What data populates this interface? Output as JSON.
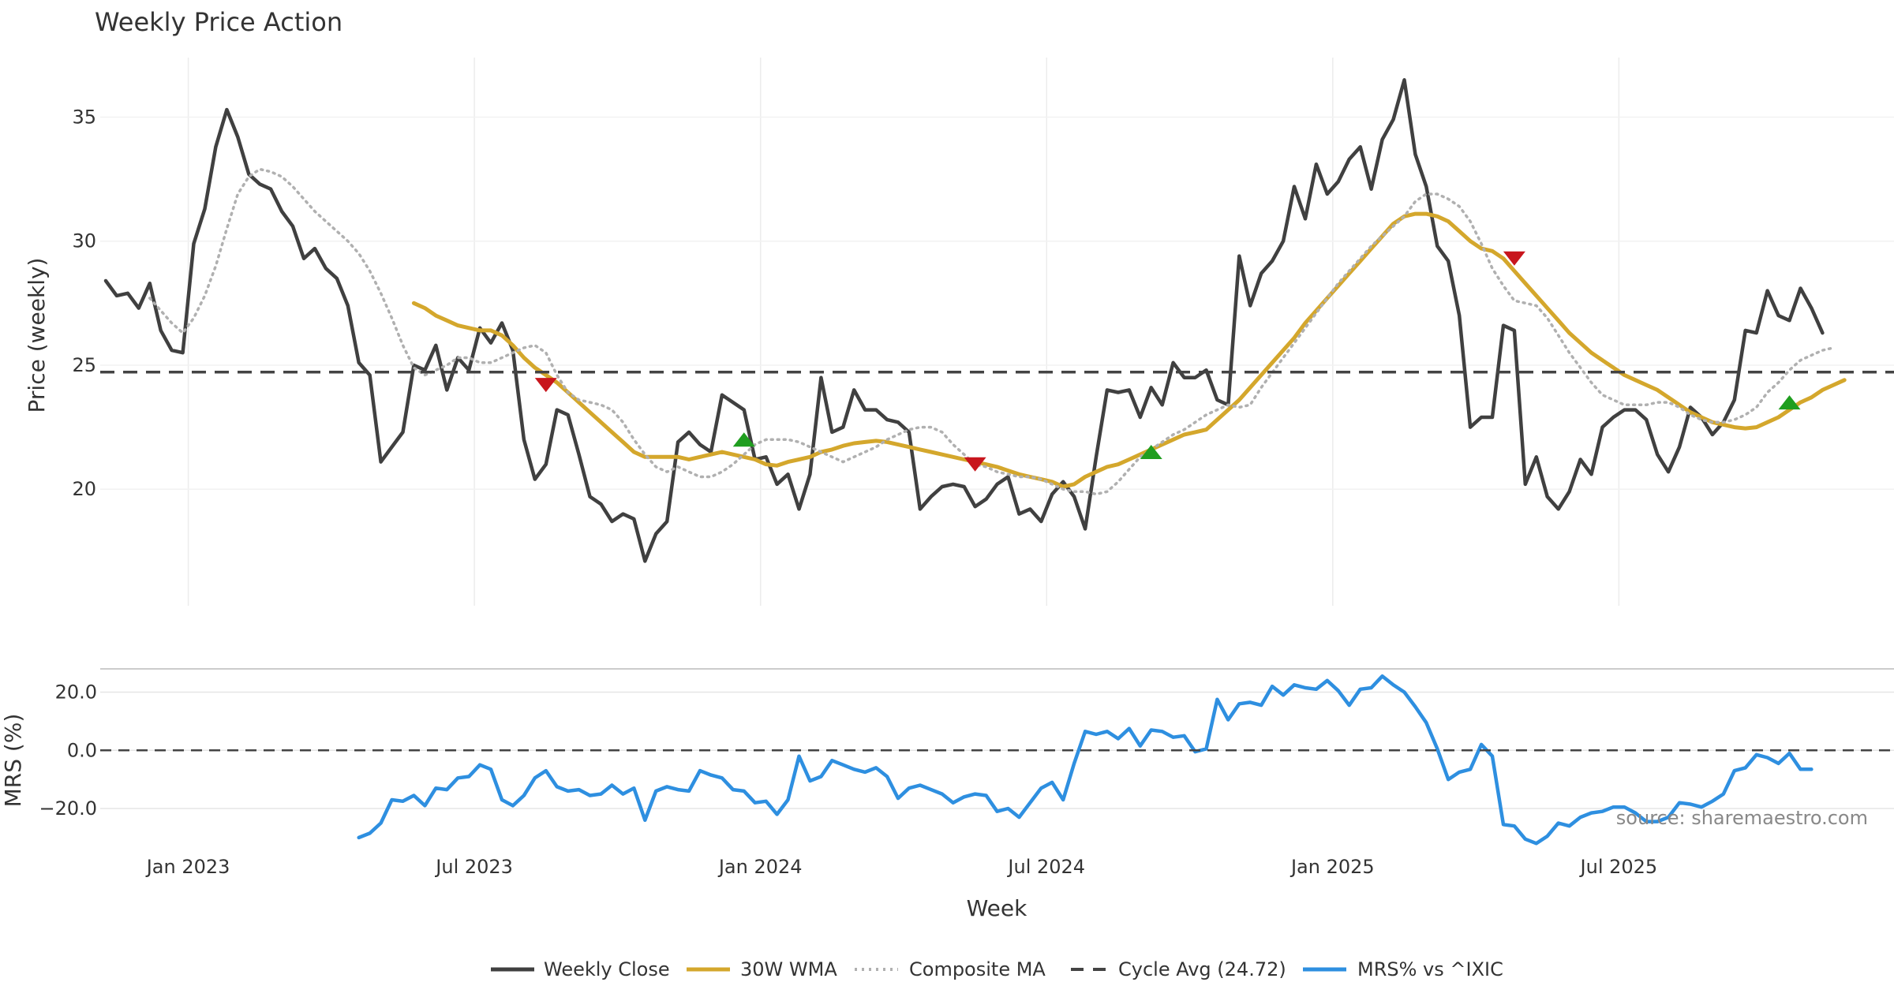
{
  "chart_data": {
    "title": "Weekly Price Action",
    "source_note": "source: sharemaestro.com",
    "xlabel": "Week",
    "x_tick_labels": [
      "Jan 2023",
      "Jul 2023",
      "Jan 2024",
      "Jul 2024",
      "Jan 2025",
      "Jul 2025"
    ],
    "x_range_weeks": [
      -0.5,
      162.5
    ],
    "legend_placement": "bottom-center",
    "legend": [
      {
        "label": "Weekly Close",
        "color": "#404040",
        "style": "solid"
      },
      {
        "label": "30W WMA",
        "color": "#d4a72c",
        "style": "solid"
      },
      {
        "label": "Composite MA",
        "color": "#b0b0b0",
        "style": "dotted"
      },
      {
        "label": "Cycle Avg (24.72)",
        "color": "#444444",
        "style": "dashed"
      },
      {
        "label": "MRS% vs ^IXIC",
        "color": "#2e8fe0",
        "style": "solid"
      }
    ],
    "panels": [
      {
        "type": "line",
        "ylabel": "Price (weekly)",
        "ylim": [
          15.3,
          37.4
        ],
        "yticks": [
          20,
          25,
          30,
          35
        ],
        "grid": true,
        "series": [
          {
            "name": "Weekly Close",
            "color": "#404040",
            "width": 4.5,
            "dash": "",
            "start_week": 0,
            "values": [
              28.4,
              27.8,
              27.9,
              27.3,
              28.3,
              26.4,
              25.6,
              25.5,
              29.9,
              31.3,
              33.8,
              35.3,
              34.2,
              32.7,
              32.3,
              32.1,
              31.2,
              30.6,
              29.3,
              29.7,
              28.9,
              28.5,
              27.4,
              25.1,
              24.6,
              21.1,
              21.7,
              22.3,
              25.0,
              24.8,
              25.8,
              24.0,
              25.3,
              24.8,
              26.5,
              25.9,
              26.7,
              25.6,
              22.0,
              20.4,
              21.0,
              23.2,
              23.0,
              21.4,
              19.7,
              19.4,
              18.7,
              19.0,
              18.8,
              17.1,
              18.2,
              18.7,
              21.9,
              22.3,
              21.8,
              21.5,
              23.8,
              23.5,
              23.2,
              21.2,
              21.3,
              20.2,
              20.6,
              19.2,
              20.6,
              24.5,
              22.3,
              22.5,
              24.0,
              23.2,
              23.2,
              22.8,
              22.7,
              22.3,
              19.2,
              19.7,
              20.1,
              20.2,
              20.1,
              19.3,
              19.6,
              20.2,
              20.5,
              19.0,
              19.2,
              18.7,
              19.8,
              20.3,
              19.7,
              18.4,
              21.3,
              24.0,
              23.9,
              24.0,
              22.9,
              24.1,
              23.4,
              25.1,
              24.5,
              24.5,
              24.8,
              23.6,
              23.4,
              29.4,
              27.4,
              28.7,
              29.2,
              30.0,
              32.2,
              30.9,
              33.1,
              31.9,
              32.4,
              33.3,
              33.8,
              32.1,
              34.1,
              34.9,
              36.5,
              33.5,
              32.2,
              29.8,
              29.2,
              27.0,
              22.5,
              22.9,
              22.9,
              26.6,
              26.4,
              20.2,
              21.3,
              19.7,
              19.2,
              19.9,
              21.2,
              20.6,
              22.5,
              22.9,
              23.2,
              23.2,
              22.8,
              21.4,
              20.7,
              21.7,
              23.3,
              22.9,
              22.2,
              22.7,
              23.6,
              26.4,
              26.3,
              28.0,
              27.0,
              26.8,
              28.1,
              27.3,
              26.3
            ]
          },
          {
            "name": "30W WMA",
            "color": "#d4a72c",
            "width": 5,
            "dash": "",
            "start_week": 28,
            "values": [
              27.5,
              27.3,
              27.0,
              26.8,
              26.6,
              26.5,
              26.4,
              26.4,
              26.2,
              25.8,
              25.3,
              24.9,
              24.6,
              24.3,
              23.9,
              23.5,
              23.1,
              22.7,
              22.3,
              21.9,
              21.5,
              21.3,
              21.3,
              21.3,
              21.3,
              21.2,
              21.3,
              21.4,
              21.5,
              21.4,
              21.3,
              21.2,
              21.0,
              20.95,
              21.1,
              21.2,
              21.3,
              21.5,
              21.6,
              21.75,
              21.85,
              21.9,
              21.95,
              21.9,
              21.8,
              21.7,
              21.6,
              21.5,
              21.4,
              21.3,
              21.2,
              21.1,
              21.0,
              20.9,
              20.75,
              20.6,
              20.5,
              20.4,
              20.3,
              20.1,
              20.2,
              20.5,
              20.7,
              20.9,
              21.0,
              21.2,
              21.4,
              21.6,
              21.8,
              22.0,
              22.2,
              22.3,
              22.4,
              22.8,
              23.2,
              23.6,
              24.1,
              24.6,
              25.1,
              25.6,
              26.1,
              26.7,
              27.2,
              27.7,
              28.2,
              28.7,
              29.2,
              29.7,
              30.2,
              30.7,
              31.0,
              31.1,
              31.1,
              31.0,
              30.8,
              30.4,
              30.0,
              29.7,
              29.6,
              29.3,
              28.8,
              28.3,
              27.8,
              27.3,
              26.8,
              26.3,
              25.9,
              25.5,
              25.2,
              24.9,
              24.6,
              24.4,
              24.2,
              24.0,
              23.7,
              23.4,
              23.1,
              22.9,
              22.7,
              22.6,
              22.5,
              22.45,
              22.5,
              22.7,
              22.9,
              23.2,
              23.5,
              23.7,
              24.0,
              24.2,
              24.4
            ]
          },
          {
            "name": "Composite MA",
            "color": "#b0b0b0",
            "width": 3.5,
            "dash": "2 6",
            "start_week": 4,
            "values": [
              27.7,
              27.2,
              26.7,
              26.3,
              26.9,
              27.8,
              29.0,
              30.5,
              31.9,
              32.6,
              32.9,
              32.8,
              32.6,
              32.2,
              31.7,
              31.2,
              30.8,
              30.4,
              30.0,
              29.5,
              28.8,
              27.9,
              26.9,
              25.8,
              24.9,
              24.6,
              24.8,
              25.0,
              25.3,
              25.3,
              25.1,
              25.1,
              25.3,
              25.5,
              25.7,
              25.8,
              25.5,
              24.6,
              23.9,
              23.6,
              23.5,
              23.4,
              23.2,
              22.7,
              22.0,
              21.4,
              20.9,
              20.7,
              20.9,
              20.7,
              20.5,
              20.5,
              20.7,
              21.0,
              21.4,
              21.8,
              22.0,
              22.0,
              22.0,
              21.9,
              21.7,
              21.5,
              21.3,
              21.1,
              21.3,
              21.5,
              21.7,
              22.0,
              22.2,
              22.4,
              22.5,
              22.5,
              22.3,
              21.8,
              21.4,
              21.0,
              20.9,
              20.7,
              20.6,
              20.5,
              20.5,
              20.4,
              20.2,
              20.0,
              19.9,
              19.9,
              19.8,
              19.9,
              20.3,
              20.8,
              21.3,
              21.6,
              21.9,
              22.2,
              22.4,
              22.7,
              23.0,
              23.2,
              23.4,
              23.3,
              23.4,
              24.1,
              24.7,
              25.3,
              25.9,
              26.5,
              27.1,
              27.7,
              28.3,
              28.8,
              29.3,
              29.8,
              30.2,
              30.6,
              31.0,
              31.6,
              31.9,
              31.9,
              31.7,
              31.4,
              30.8,
              29.9,
              28.9,
              28.2,
              27.6,
              27.5,
              27.4,
              26.9,
              26.2,
              25.5,
              24.9,
              24.3,
              23.8,
              23.6,
              23.4,
              23.4,
              23.4,
              23.5,
              23.5,
              23.3,
              23.0,
              22.8,
              22.7,
              22.7,
              22.8,
              23.0,
              23.3,
              23.9,
              24.3,
              24.8,
              25.2,
              25.4,
              25.6,
              25.7
            ]
          },
          {
            "name": "Cycle Avg (24.72)",
            "color": "#444444",
            "width": 3.5,
            "dash": "18 11",
            "constant": 24.72
          }
        ],
        "markers": [
          {
            "shape": "triangle-down",
            "color": "#c8161d",
            "week": 40,
            "value": 24.2
          },
          {
            "shape": "triangle-up",
            "color": "#1f9e1f",
            "week": 58,
            "value": 22.0
          },
          {
            "shape": "triangle-down",
            "color": "#c8161d",
            "week": 79,
            "value": 21.0
          },
          {
            "shape": "triangle-up",
            "color": "#1f9e1f",
            "week": 95,
            "value": 21.5
          },
          {
            "shape": "triangle-down",
            "color": "#c8161d",
            "week": 128,
            "value": 29.3
          },
          {
            "shape": "triangle-up",
            "color": "#1f9e1f",
            "week": 153,
            "value": 23.5
          }
        ]
      },
      {
        "type": "line",
        "ylabel": "MRS (%)",
        "ylim": [
          -33,
          28
        ],
        "yticks": [
          20.0,
          0.0,
          -20.0
        ],
        "ytick_labels": [
          "20.0",
          "0.0",
          "−20.0"
        ],
        "grid": true,
        "series": [
          {
            "name": "MRS% vs ^IXIC",
            "color": "#2e8fe0",
            "width": 4.5,
            "dash": "",
            "start_week": 23,
            "values": [
              -30.0,
              -28.5,
              -25.0,
              -17.0,
              -17.5,
              -15.5,
              -19.0,
              -13.0,
              -13.5,
              -9.5,
              -9.0,
              -5.0,
              -6.5,
              -17.0,
              -19.0,
              -15.5,
              -9.5,
              -7.0,
              -12.5,
              -14.0,
              -13.5,
              -15.5,
              -15.0,
              -12.0,
              -15.0,
              -13.0,
              -24.0,
              -14.0,
              -12.5,
              -13.5,
              -14.0,
              -7.0,
              -8.5,
              -9.5,
              -13.5,
              -14.0,
              -18.0,
              -17.5,
              -22.0,
              -17.0,
              -2.0,
              -10.5,
              -9.0,
              -3.5,
              -5.0,
              -6.5,
              -7.5,
              -6.0,
              -9.0,
              -16.5,
              -13.0,
              -12.0,
              -13.5,
              -15.0,
              -18.0,
              -16.0,
              -15.0,
              -15.5,
              -21.0,
              -20.0,
              -23.0,
              -18.0,
              -13.0,
              -11.0,
              -17.0,
              -4.5,
              6.5,
              5.5,
              6.5,
              4.0,
              7.5,
              1.5,
              7.0,
              6.5,
              4.5,
              5.0,
              -0.5,
              0.5,
              17.5,
              10.5,
              16.0,
              16.5,
              15.5,
              22.0,
              19.0,
              22.5,
              21.5,
              21.0,
              24.0,
              20.5,
              15.5,
              21.0,
              21.5,
              25.5,
              22.5,
              20.0,
              15.0,
              9.5,
              0.5,
              -10.0,
              -7.5,
              -6.5,
              2.0,
              -2.0,
              -25.5,
              -26.0,
              -30.5,
              -32.0,
              -29.5,
              -25.0,
              -26.0,
              -23.0,
              -21.5,
              -21.0,
              -19.5,
              -19.5,
              -21.5,
              -24.5,
              -24.5,
              -23.0,
              -18.0,
              -18.5,
              -19.5,
              -17.5,
              -15.0,
              -7.0,
              -6.0,
              -1.5,
              -2.5,
              -4.5,
              -1.0,
              -6.5,
              -6.5
            ]
          },
          {
            "name": "zero line",
            "color": "#444444",
            "width": 2.5,
            "dash": "14 9",
            "constant": 0
          }
        ]
      }
    ]
  }
}
